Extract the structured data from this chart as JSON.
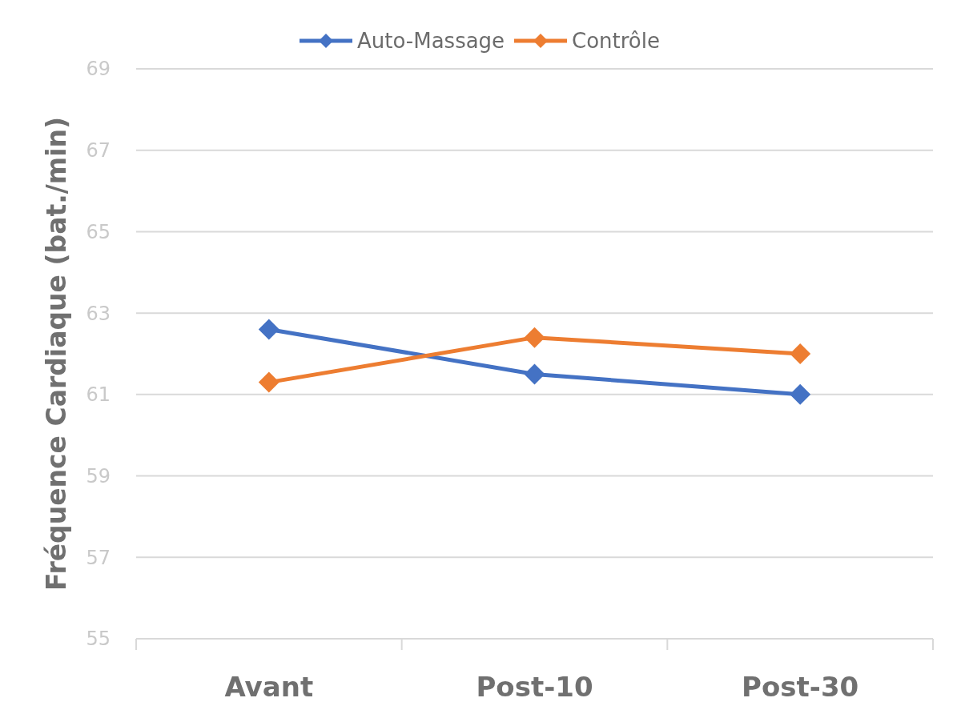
{
  "chart_data": {
    "type": "line",
    "ylabel": "Fréquence Cardiaque (bat./min)",
    "categories": [
      "Avant",
      "Post-10",
      "Post-30"
    ],
    "series": [
      {
        "name": "Auto-Massage",
        "color": "#4472c4",
        "values": [
          62.6,
          61.5,
          61.0
        ]
      },
      {
        "name": "Contrôle",
        "color": "#ed7d31",
        "values": [
          61.3,
          62.4,
          62.0
        ]
      }
    ],
    "ylim": [
      55,
      69
    ],
    "yticks": [
      55,
      57,
      59,
      61,
      63,
      65,
      67,
      69
    ],
    "grid": "y",
    "legend": "top",
    "marker": "diamond",
    "line_style": "solid"
  }
}
